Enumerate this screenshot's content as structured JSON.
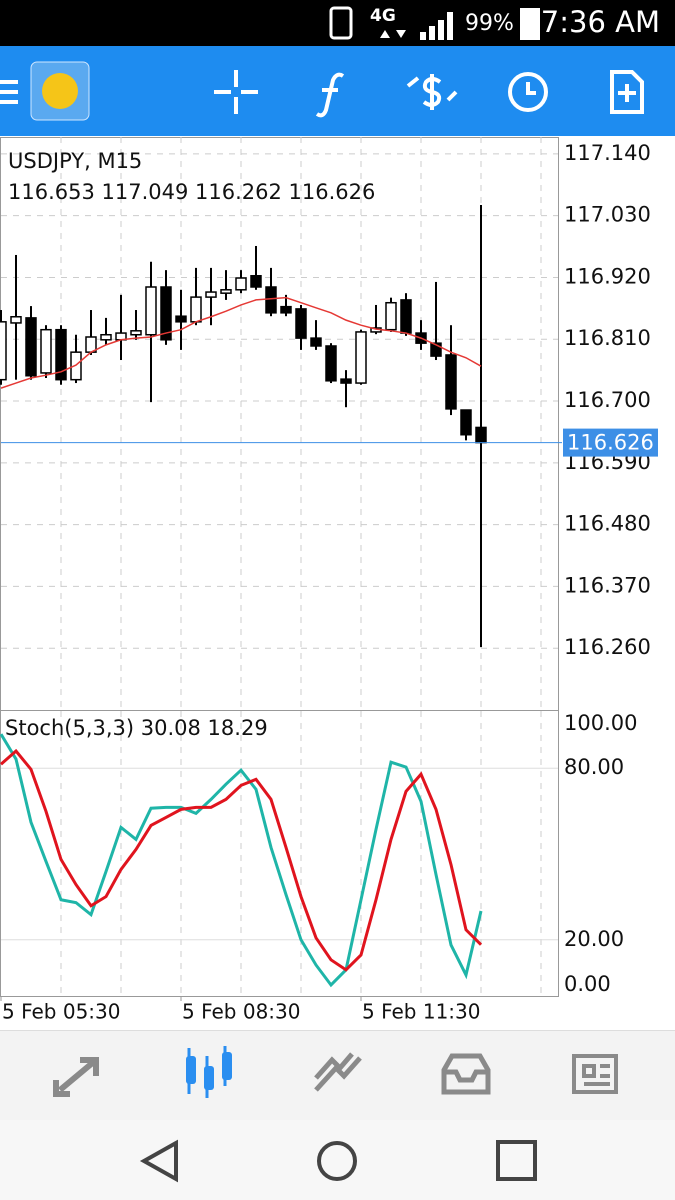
{
  "status_bar": {
    "network": "4G",
    "battery": "99%",
    "time": "7:36 AM"
  },
  "chart_data": [
    {
      "type": "candlestick",
      "title": "USDJPY, M15",
      "subtitle": "116.653 117.049 116.262 116.626",
      "open": [
        116.738,
        116.839,
        116.848,
        116.75,
        116.827,
        116.738,
        116.787,
        116.809,
        116.809,
        116.818,
        116.818,
        116.903,
        116.851,
        116.841,
        116.885,
        116.892,
        116.898,
        116.923,
        116.903,
        116.868,
        116.864,
        116.812,
        116.798,
        116.739,
        116.732,
        116.823,
        116.827,
        116.88,
        116.821,
        116.803,
        116.782,
        116.684,
        116.653
      ],
      "high": [
        116.862,
        116.96,
        116.869,
        116.835,
        116.835,
        116.818,
        116.862,
        116.848,
        116.889,
        116.862,
        116.948,
        116.933,
        116.898,
        116.937,
        116.937,
        116.933,
        116.933,
        116.976,
        116.937,
        116.889,
        116.871,
        116.844,
        116.803,
        116.755,
        116.827,
        116.871,
        116.884,
        116.892,
        116.844,
        116.912,
        116.835,
        116.684,
        117.049
      ],
      "low": [
        116.729,
        116.738,
        116.738,
        116.741,
        116.729,
        116.732,
        116.782,
        116.8,
        116.773,
        116.809,
        116.698,
        116.8,
        116.791,
        116.835,
        116.835,
        116.88,
        116.892,
        116.898,
        116.851,
        116.851,
        116.791,
        116.791,
        116.732,
        116.689,
        116.729,
        116.819,
        116.823,
        116.816,
        116.791,
        116.773,
        116.675,
        116.63,
        116.262
      ],
      "close": [
        116.841,
        116.85,
        116.745,
        116.827,
        116.738,
        116.787,
        116.814,
        116.818,
        116.821,
        116.825,
        116.903,
        116.809,
        116.841,
        116.885,
        116.894,
        116.898,
        116.919,
        116.903,
        116.857,
        116.857,
        116.812,
        116.798,
        116.736,
        116.732,
        116.823,
        116.83,
        116.875,
        116.821,
        116.803,
        116.78,
        116.686,
        116.64,
        116.626
      ],
      "up_color": "#ffffff",
      "down_color": "#000000",
      "overlay": {
        "color": "#e53935",
        "values": [
          116.723,
          116.732,
          116.741,
          116.746,
          116.752,
          116.764,
          116.787,
          116.8,
          116.809,
          116.812,
          116.814,
          116.821,
          116.827,
          116.841,
          116.85,
          116.86,
          116.871,
          116.88,
          116.882,
          116.884,
          116.875,
          116.866,
          116.857,
          116.844,
          116.835,
          116.828,
          116.825,
          116.821,
          116.812,
          116.8,
          116.787,
          116.777,
          116.762
        ]
      },
      "bid": 116.626,
      "bid_color": "#3d8fe6",
      "ylim": [
        116.15,
        117.17
      ],
      "yticks": [
        {
          "value": 117.14,
          "label": "117.140"
        },
        {
          "value": 117.03,
          "label": "117.030"
        },
        {
          "value": 116.92,
          "label": "116.920"
        },
        {
          "value": 116.81,
          "label": "116.810"
        },
        {
          "value": 116.7,
          "label": "116.700"
        },
        {
          "value": 116.59,
          "label": "116.590"
        },
        {
          "value": 116.48,
          "label": "116.480"
        },
        {
          "value": 116.37,
          "label": "116.370"
        },
        {
          "value": 116.26,
          "label": "116.260"
        }
      ],
      "grid": "dashed"
    },
    {
      "type": "line",
      "title": "Stoch(5,3,3) 30.08 18.29",
      "categories": [
        "5 Feb 05:30",
        null,
        null,
        null,
        null,
        null,
        null,
        null,
        null,
        null,
        null,
        null,
        "5 Feb 08:30",
        null,
        null,
        null,
        null,
        null,
        null,
        null,
        null,
        null,
        null,
        null,
        "5 Feb 11:30",
        null,
        null,
        null,
        null,
        null,
        null,
        null,
        null
      ],
      "series": [
        {
          "color": "#1fb5a8",
          "values": [
            91.9,
            83.2,
            61.1,
            47.4,
            34.0,
            33.0,
            28.8,
            43.9,
            59.3,
            55.1,
            66.0,
            66.3,
            66.3,
            64.2,
            69.1,
            74.4,
            79.3,
            72.6,
            52.3,
            35.8,
            20.0,
            11.2,
            4.2,
            9.5,
            34.0,
            58.6,
            82.1,
            80.4,
            68.4,
            42.8,
            18.2,
            7.7,
            30.08
          ]
        },
        {
          "color": "#e0141e",
          "values": [
            81.4,
            86.0,
            79.6,
            64.9,
            48.1,
            39.3,
            31.9,
            35.1,
            44.6,
            51.6,
            60.0,
            62.8,
            65.6,
            66.3,
            66.3,
            69.1,
            74.0,
            76.1,
            69.1,
            52.3,
            35.1,
            20.7,
            13.0,
            9.5,
            14.7,
            34.0,
            55.1,
            71.9,
            77.9,
            65.6,
            46.3,
            23.5,
            18.29
          ]
        }
      ],
      "ylim": [
        0,
        100
      ],
      "yticks": [
        {
          "value": 100,
          "label": "100.00"
        },
        {
          "value": 80,
          "label": "80.00"
        },
        {
          "value": 20,
          "label": "20.00"
        },
        {
          "value": 0,
          "label": "0.00"
        }
      ],
      "grid_values": [
        20,
        80
      ]
    }
  ]
}
